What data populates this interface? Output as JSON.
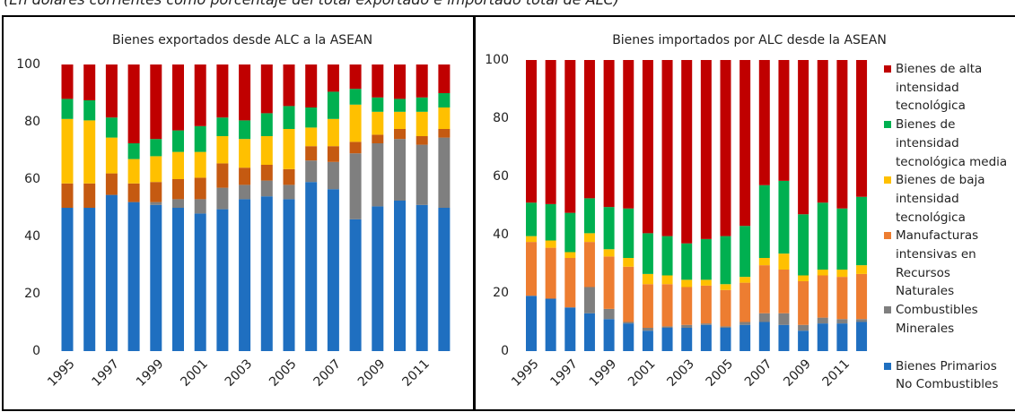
{
  "caption": "(En dólares corrientes como porcentaje del total exportado e importado total de ALC)",
  "chart_data": [
    {
      "type": "bar",
      "stacked": true,
      "title": "Bienes exportados desde ALC a la ASEAN",
      "categories": [
        "1995",
        null,
        "1997",
        null,
        "1999",
        null,
        "2001",
        null,
        "2003",
        null,
        "2005",
        null,
        "2007",
        null,
        "2009",
        null,
        "2011",
        null
      ],
      "ylim": [
        0,
        100
      ],
      "yticks": [
        0,
        20,
        40,
        60,
        80,
        100
      ],
      "series": [
        {
          "color": "#1f6fc0",
          "values": [
            50,
            50,
            54.5,
            52,
            51,
            50,
            48,
            49.5,
            53,
            54,
            53,
            59,
            56.5,
            46,
            50.5,
            52.5,
            51,
            50
          ]
        },
        {
          "color": "#7f7f7f",
          "values": [
            0,
            0,
            0,
            0,
            1,
            3,
            5,
            7.5,
            5,
            5.5,
            5,
            7.5,
            9.5,
            23,
            22,
            21.5,
            21,
            24.5
          ]
        },
        {
          "color": "#c55a11",
          "values": [
            8.5,
            8.5,
            7.5,
            6.5,
            7,
            7,
            7.5,
            8.5,
            6,
            5.5,
            5.5,
            5,
            5.5,
            4,
            3,
            3.5,
            3,
            3
          ]
        },
        {
          "color": "#ffc000",
          "values": [
            22.5,
            22,
            12.5,
            8.5,
            9,
            9.5,
            9,
            9.5,
            10,
            10,
            14,
            6.5,
            9.5,
            13,
            8,
            6,
            8.5,
            7.5
          ]
        },
        {
          "color": "#00b050",
          "values": [
            7,
            7,
            7,
            5.5,
            6,
            7.5,
            9,
            6.5,
            6.5,
            8,
            8,
            7,
            9.5,
            5.5,
            5,
            4.5,
            5,
            5
          ]
        },
        {
          "color": "#c00000",
          "values": [
            12,
            12.5,
            18.5,
            27.5,
            26,
            23,
            21.5,
            18.5,
            19.5,
            17,
            14.5,
            15,
            9.5,
            8.5,
            11.5,
            12,
            11.5,
            10
          ]
        }
      ]
    },
    {
      "type": "bar",
      "stacked": true,
      "title": "Bienes importados por ALC desde la ASEAN",
      "categories": [
        "1995",
        null,
        "1997",
        null,
        "1999",
        null,
        "2001",
        null,
        "2003",
        null,
        "2005",
        null,
        "2007",
        null,
        "2009",
        null,
        "2011",
        null
      ],
      "ylim": [
        0,
        100
      ],
      "yticks": [
        0,
        20,
        40,
        60,
        80,
        100
      ],
      "series": [
        {
          "name": "Bienes Primarios No Combustibles",
          "color": "#1f6fc0",
          "values": [
            19,
            18,
            15,
            13,
            11,
            9.5,
            7,
            8,
            8,
            9,
            8,
            9,
            10,
            9,
            7,
            9.5,
            9.5,
            10
          ]
        },
        {
          "name": "Combustibles Minerales",
          "color": "#7f7f7f",
          "values": [
            0,
            0,
            0,
            9,
            3.5,
            0.5,
            1,
            0.5,
            1,
            0.5,
            0.5,
            1,
            3,
            4,
            2,
            2,
            1.5,
            1
          ]
        },
        {
          "name": "Manufacturas intensivas en Recursos Naturales",
          "color": "#ed7d31",
          "values": [
            18.5,
            17.5,
            17,
            15.5,
            18,
            19,
            15,
            14.5,
            13,
            13,
            12.5,
            13.5,
            16.5,
            15,
            15,
            14.5,
            14.5,
            15.5
          ]
        },
        {
          "name": "Bienes de baja intensidad tecnológica",
          "color": "#ffc000",
          "values": [
            2,
            2.5,
            2,
            3,
            2.5,
            3,
            3.5,
            3,
            2.5,
            2,
            2,
            2,
            2.5,
            5.5,
            2,
            2,
            2.5,
            3
          ]
        },
        {
          "name": "Bienes de intensidad tecnológica media",
          "color": "#00b050",
          "values": [
            11.5,
            12.5,
            13.5,
            12,
            14.5,
            17,
            14,
            13.5,
            12.5,
            14,
            16.5,
            17.5,
            25,
            25,
            21,
            23,
            21,
            23.5
          ]
        },
        {
          "name": "Bienes de alta intensidad tecnológica",
          "color": "#c00000",
          "values": [
            49,
            49.5,
            52.5,
            47.5,
            50.5,
            51,
            59.5,
            60.5,
            63,
            61.5,
            60.5,
            57,
            43,
            41.5,
            53,
            49,
            51,
            47
          ]
        }
      ]
    }
  ]
}
